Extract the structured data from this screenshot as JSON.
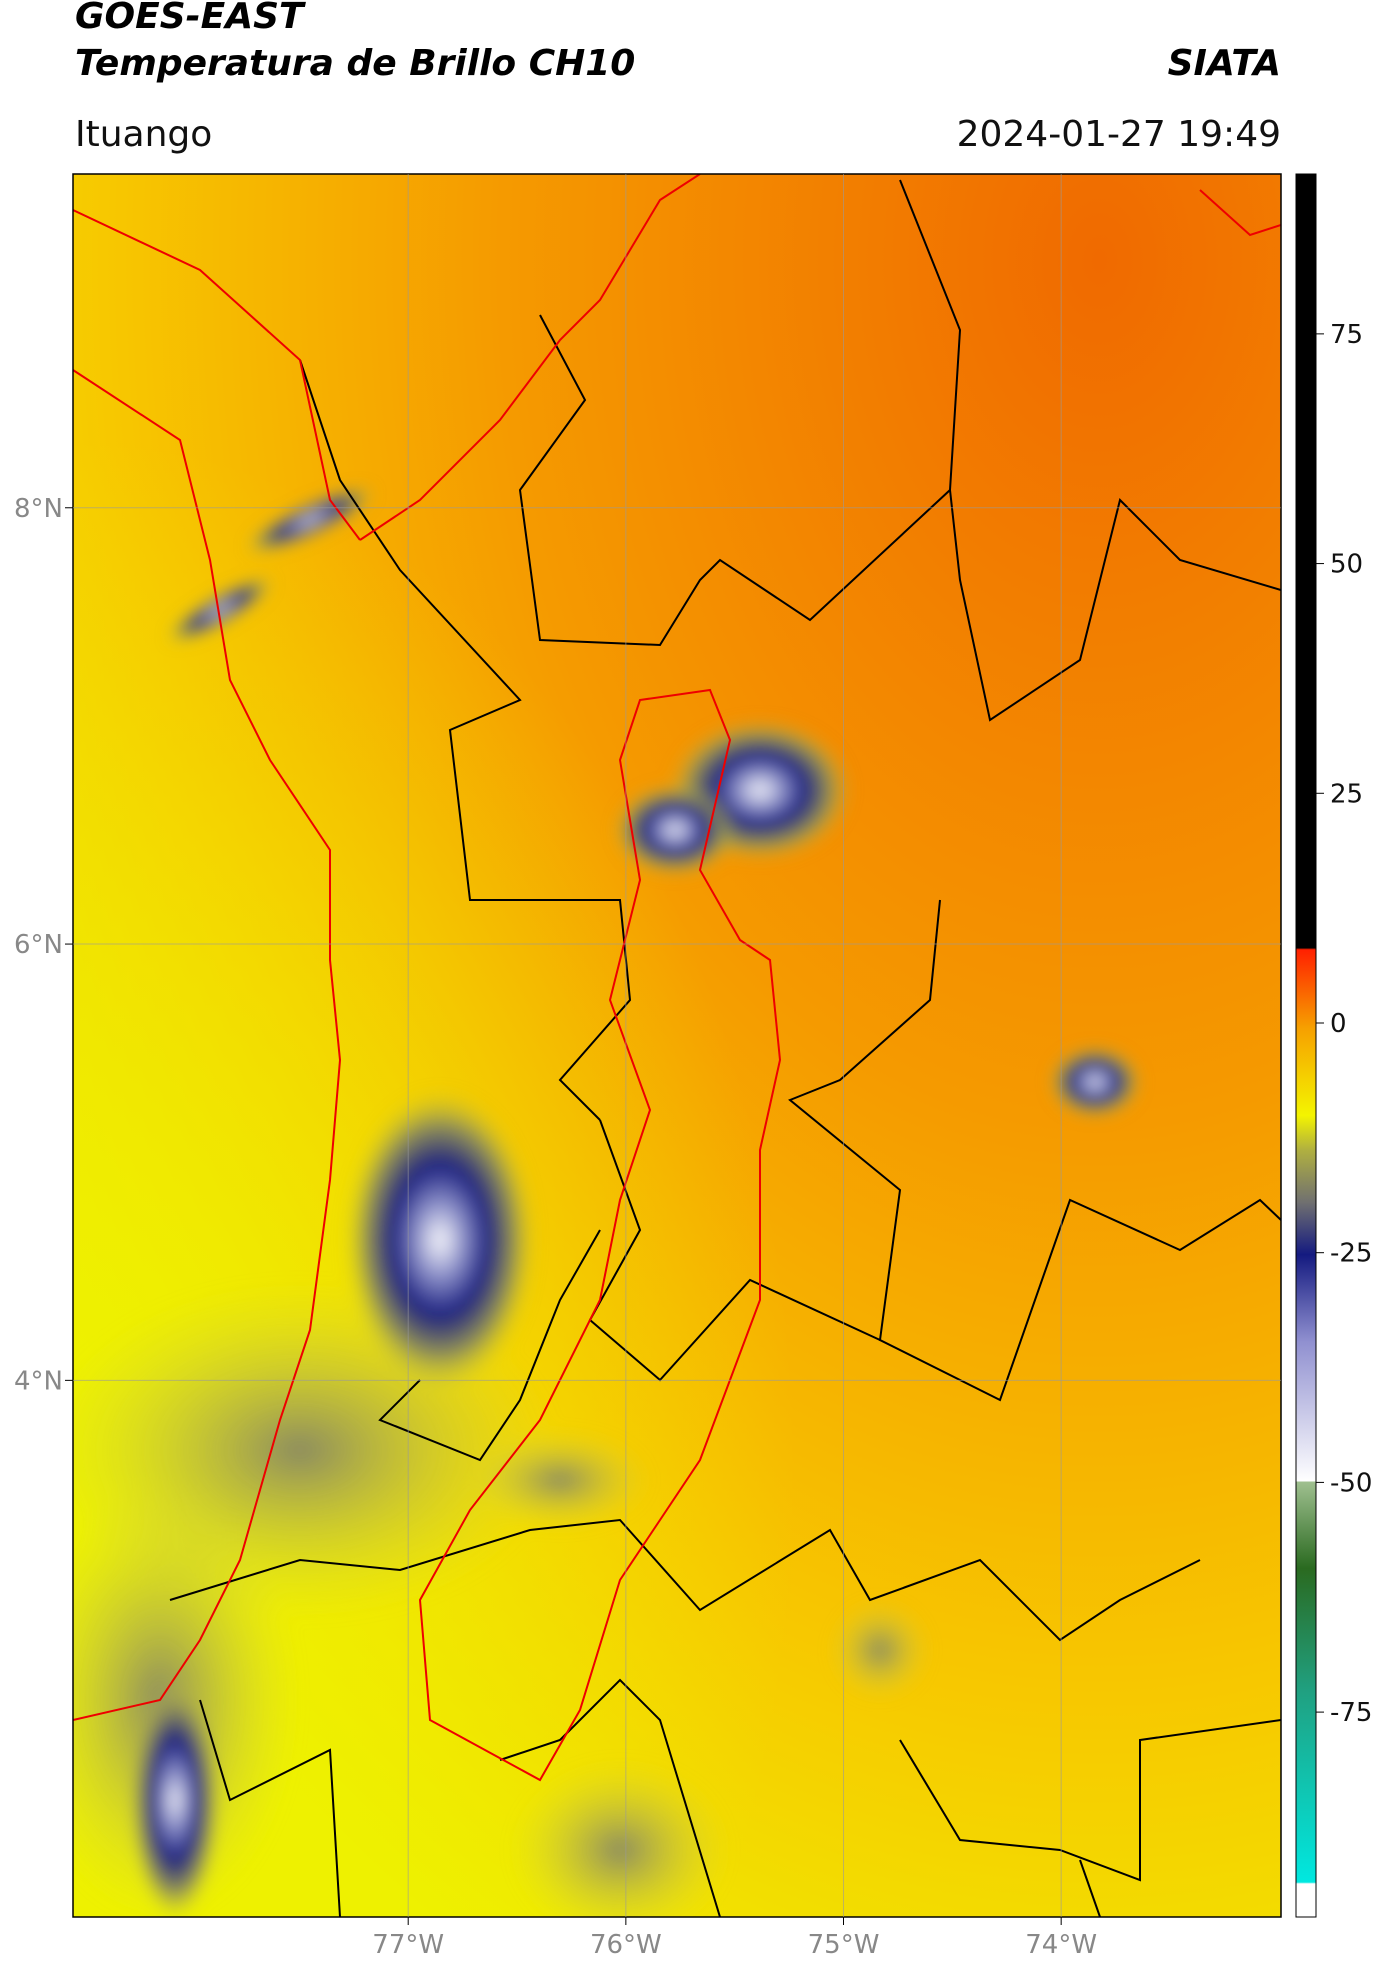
{
  "header": {
    "title": "GOES-EAST",
    "subtitle": "Temperatura de Brillo CH10",
    "source": "SIATA",
    "location": "Ituango",
    "datetime": "2024-01-27 19:49"
  },
  "map": {
    "lon_range": [
      -78.54,
      -72.99
    ],
    "lat_range": [
      1.54,
      9.53
    ],
    "lon_ticks": [
      {
        "value": -77,
        "label": "77°W"
      },
      {
        "value": -76,
        "label": "76°W"
      },
      {
        "value": -75,
        "label": "75°W"
      },
      {
        "value": -74,
        "label": "74°W"
      }
    ],
    "lat_ticks": [
      {
        "value": 8,
        "label": "8°N"
      },
      {
        "value": 6,
        "label": "6°N"
      },
      {
        "value": 4,
        "label": "4°N"
      }
    ]
  },
  "colorbar": {
    "range": [
      -97.3,
      92.4
    ],
    "ticks": [
      75,
      50,
      25,
      0,
      {
        "value": -25,
        "label": "-25"
      },
      {
        "value": -50,
        "label": "-50"
      },
      {
        "value": -75,
        "label": "-75"
      }
    ]
  }
}
